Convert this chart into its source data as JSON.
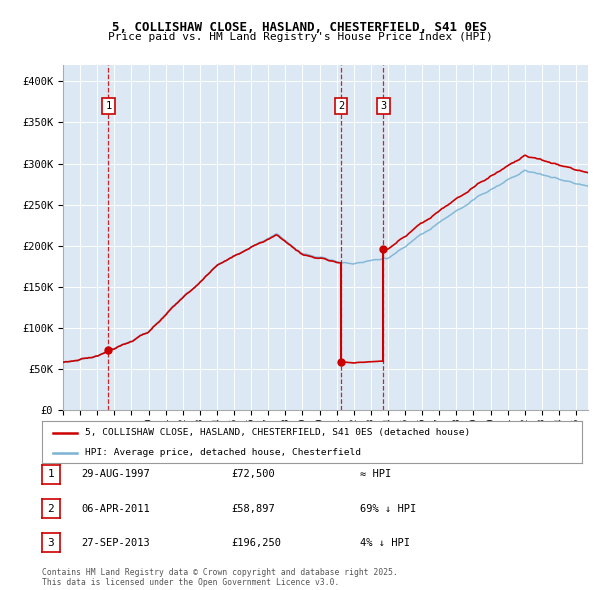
{
  "title": "5, COLLISHAW CLOSE, HASLAND, CHESTERFIELD, S41 0ES",
  "subtitle": "Price paid vs. HM Land Registry's House Price Index (HPI)",
  "legend_entry1": "5, COLLISHAW CLOSE, HASLAND, CHESTERFIELD, S41 0ES (detached house)",
  "legend_entry2": "HPI: Average price, detached house, Chesterfield",
  "table": [
    {
      "num": "1",
      "date": "29-AUG-1997",
      "price": "£72,500",
      "hpi": "≈ HPI"
    },
    {
      "num": "2",
      "date": "06-APR-2011",
      "price": "£58,897",
      "hpi": "69% ↓ HPI"
    },
    {
      "num": "3",
      "date": "27-SEP-2013",
      "price": "£196,250",
      "hpi": "4% ↓ HPI"
    }
  ],
  "footer": "Contains HM Land Registry data © Crown copyright and database right 2025.\nThis data is licensed under the Open Government Licence v3.0.",
  "sale_dates_decimal": [
    1997.66,
    2011.26,
    2013.74
  ],
  "sale_prices": [
    72500,
    58897,
    196250
  ],
  "bg_color": "#dce9f5",
  "red_color": "#cc0000",
  "blue_color": "#7ab3d4",
  "ylim": [
    0,
    420000
  ],
  "xlim_start": 1995.0,
  "xlim_end": 2025.7,
  "y_ticks": [
    0,
    50000,
    100000,
    150000,
    200000,
    250000,
    300000,
    350000,
    400000
  ],
  "y_labels": [
    "£0",
    "£50K",
    "£100K",
    "£150K",
    "£200K",
    "£250K",
    "£300K",
    "£350K",
    "£400K"
  ]
}
